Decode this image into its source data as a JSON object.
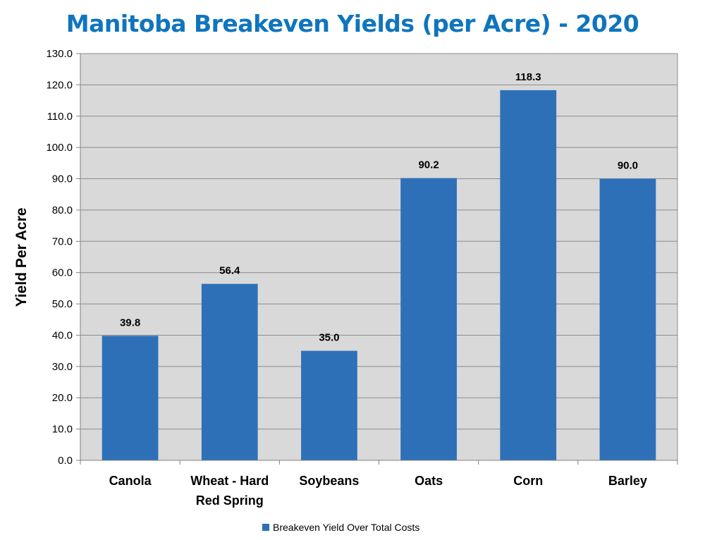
{
  "chart_data": {
    "type": "bar",
    "title": "Manitoba Breakeven Yields (per Acre) - 2020",
    "xlabel": "",
    "ylabel": "Yield Per Acre",
    "categories": [
      [
        "Canola"
      ],
      [
        "Wheat - Hard",
        "Red Spring"
      ],
      [
        "Soybeans"
      ],
      [
        "Oats"
      ],
      [
        "Corn"
      ],
      [
        "Barley"
      ]
    ],
    "series": [
      {
        "name": "Breakeven Yield Over Total Costs",
        "values": [
          39.8,
          56.4,
          35.0,
          90.2,
          118.3,
          90.0
        ],
        "color": "#2e70b8"
      }
    ],
    "data_labels": [
      "39.8",
      "56.4",
      "35.0",
      "90.2",
      "118.3",
      "90.0"
    ],
    "ylim": [
      0,
      130
    ],
    "yticks": [
      "0.0",
      "10.0",
      "20.0",
      "30.0",
      "40.0",
      "50.0",
      "60.0",
      "70.0",
      "80.0",
      "90.0",
      "100.0",
      "110.0",
      "120.0",
      "130.0"
    ],
    "grid": true,
    "legend_position": "bottom",
    "plot_background": "#d9d9d9",
    "title_color": "#0f75bd"
  }
}
